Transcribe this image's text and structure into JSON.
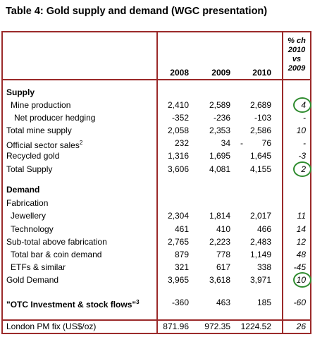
{
  "title": "Table 4: Gold supply and demand (WGC presentation)",
  "header": {
    "years": [
      "2008",
      "2009",
      "2010"
    ],
    "pct_change_lines": [
      "% ch",
      "2010",
      "vs",
      "2009"
    ]
  },
  "rows": [
    {
      "label": "Supply",
      "bold": true
    },
    {
      "label": "Mine production",
      "indent": 1,
      "v2008": "2,410",
      "v2009": "2,589",
      "v2010": "2,689",
      "pct": "4",
      "circled": true
    },
    {
      "label": "Net producer hedging",
      "indent": 2,
      "v2008": "-352",
      "v2009": "-236",
      "v2010": "-103",
      "pct": "-"
    },
    {
      "label": "Total mine supply",
      "v2008": "2,058",
      "v2009": "2,353",
      "v2010": "2,586",
      "pct": "10"
    },
    {
      "label": "Official sector sales",
      "sup": "2",
      "v2008": "232",
      "v2009": "34",
      "v2009_dash": "-",
      "v2010": "76",
      "pct": "-"
    },
    {
      "label": "Recycled gold",
      "v2008": "1,316",
      "v2009": "1,695",
      "v2010": "1,645",
      "pct": "-3"
    },
    {
      "label": "Total Supply",
      "v2008": "3,606",
      "v2009": "4,081",
      "v2010": "4,155",
      "pct": "2",
      "circled": true
    },
    {
      "label": "Demand",
      "bold": true
    },
    {
      "label": "Fabrication"
    },
    {
      "label": "Jewellery",
      "indent": 1,
      "v2008": "2,304",
      "v2009": "1,814",
      "v2010": "2,017",
      "pct": "11"
    },
    {
      "label": "Technology",
      "indent": 1,
      "v2008": "461",
      "v2009": "410",
      "v2010": "466",
      "pct": "14"
    },
    {
      "label": "Sub-total above fabrication",
      "v2008": "2,765",
      "v2009": "2,223",
      "v2010": "2,483",
      "pct": "12"
    },
    {
      "label": "Total bar & coin demand",
      "indent": 1,
      "v2008": "879",
      "v2009": "778",
      "v2010": "1,149",
      "pct": "48"
    },
    {
      "label": "ETFs & similar",
      "indent": 1,
      "v2008": "321",
      "v2009": "617",
      "v2010": "338",
      "pct": "-45"
    },
    {
      "label": "Gold Demand",
      "v2008": "3,965",
      "v2009": "3,618",
      "v2010": "3,971",
      "pct": "10",
      "circled": true
    },
    {
      "label": "\"OTC Investment & stock flows\"",
      "sup": "3",
      "bold": true,
      "v2008": "-360",
      "v2009": "463",
      "v2010": "185",
      "pct": "-60"
    },
    {
      "label": "London PM fix (US$/oz)",
      "v2008": "871.96",
      "v2009": "972.35",
      "v2010": "1224.52",
      "pct": "26"
    }
  ]
}
